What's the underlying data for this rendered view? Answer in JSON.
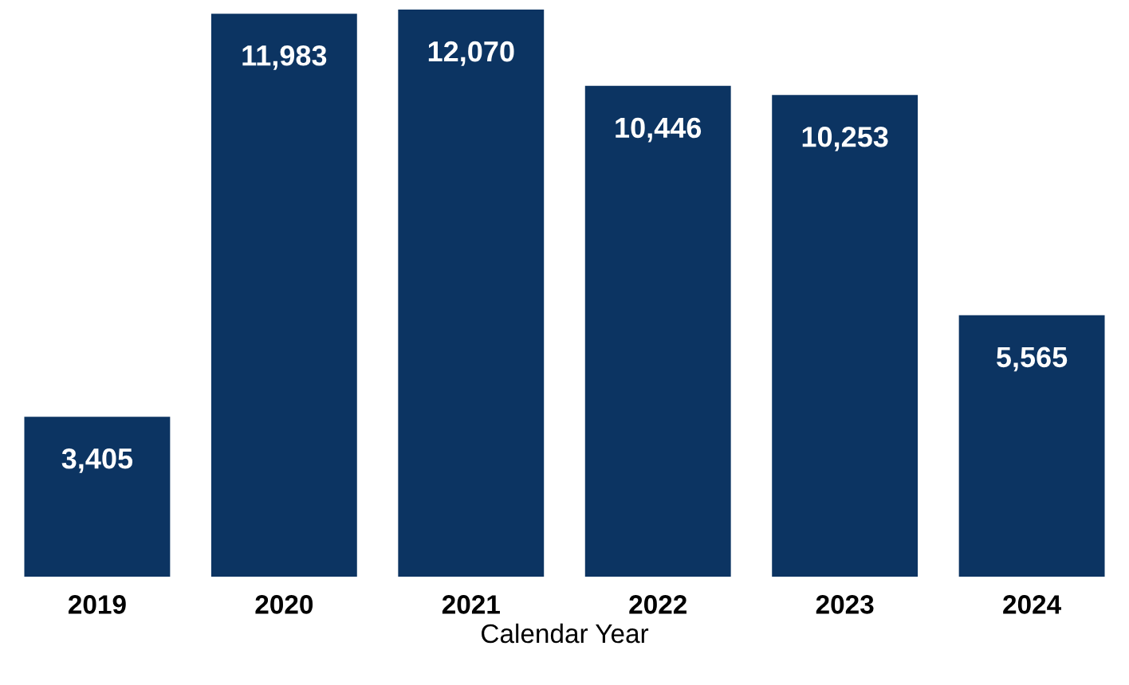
{
  "chart_data": {
    "type": "bar",
    "xlabel": "Calendar Year",
    "categories": [
      "2019",
      "2020",
      "2021",
      "2022",
      "2023",
      "2024"
    ],
    "values": [
      3405,
      11983,
      12070,
      10446,
      10253,
      5565
    ],
    "value_labels": [
      "3,405",
      "11,983",
      "12,070",
      "10,446",
      "10,253",
      "5,565"
    ],
    "color": "#0c3462",
    "grid": false,
    "legend": false
  }
}
